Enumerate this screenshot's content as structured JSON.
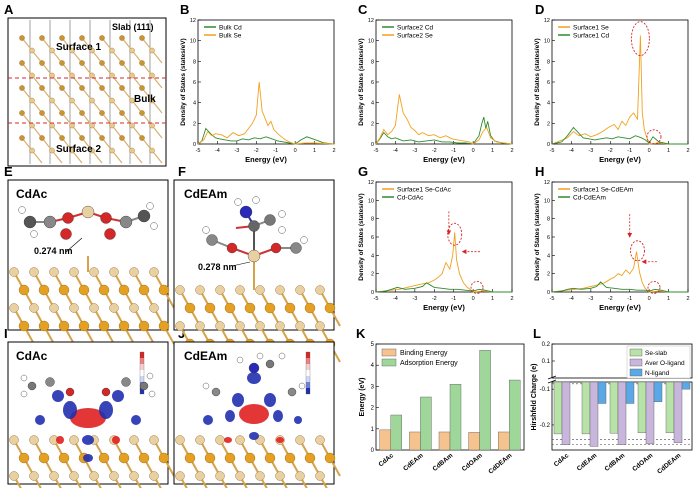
{
  "panel_letters": [
    "A",
    "B",
    "C",
    "D",
    "E",
    "F",
    "G",
    "H",
    "I",
    "J",
    "K",
    "L"
  ],
  "panel_a": {
    "slab_label": "Slab (111)",
    "surface1": "Surface 1",
    "surface2": "Surface 2",
    "bulk": "Bulk"
  },
  "panel_e": {
    "title": "CdAc",
    "distance": "0.274 nm"
  },
  "panel_f": {
    "title": "CdEAm",
    "distance": "0.278 nm"
  },
  "panel_i": {
    "title": "CdAc"
  },
  "panel_j": {
    "title": "CdEAm"
  },
  "colors": {
    "orange": "#f2a11f",
    "green": "#2e8b2e",
    "bar_orange": "#f6c28d",
    "bar_green": "#9fd79a",
    "bar_grey": "#b7e3a8",
    "bar_purple": "#c9b6dc",
    "bar_blue": "#5aa9e6",
    "red_dash": "#d62728"
  },
  "chart_data": [
    {
      "id": "B",
      "type": "line",
      "xlabel": "Energy (eV)",
      "ylabel": "Density of States (states/eV)",
      "xlim": [
        -5,
        2
      ],
      "ylim": [
        0,
        12
      ],
      "xticks": [
        -5,
        -4,
        -3,
        -2,
        -1,
        0,
        1,
        2
      ],
      "yticks": [
        0,
        2,
        4,
        6,
        8,
        10,
        12
      ],
      "series": [
        {
          "name": "Bulk Cd",
          "color": "#2e8b2e",
          "x": [
            -5,
            -4.8,
            -4.6,
            -4.45,
            -4.3,
            -4.1,
            -3.9,
            -3.6,
            -3.3,
            -3.0,
            -2.7,
            -2.4,
            -2.1,
            -1.8,
            -1.5,
            -1.2,
            -0.9,
            -0.6,
            -0.3,
            0,
            0.3,
            0.6,
            0.9,
            1.2,
            1.5,
            2
          ],
          "y": [
            0,
            0.3,
            1.5,
            1.2,
            0.9,
            0.6,
            0.5,
            0.4,
            0.3,
            0.3,
            0.5,
            0.4,
            0.6,
            0.5,
            0.7,
            0.5,
            0.3,
            0.2,
            0.1,
            0,
            0.4,
            0.7,
            0.5,
            0.3,
            0.1,
            0
          ]
        },
        {
          "name": "Bulk Se",
          "color": "#f2a11f",
          "x": [
            -5,
            -4.7,
            -4.5,
            -4.3,
            -4.1,
            -3.8,
            -3.5,
            -3.2,
            -2.9,
            -2.6,
            -2.4,
            -2.2,
            -2.0,
            -1.85,
            -1.7,
            -1.55,
            -1.4,
            -1.25,
            -1.1,
            -0.9,
            -0.7,
            -0.5,
            -0.3,
            0,
            0.5,
            1,
            2
          ],
          "y": [
            0,
            0.4,
            1.2,
            0.8,
            1.0,
            0.9,
            0.6,
            1.1,
            0.8,
            1.0,
            1.5,
            2.0,
            2.8,
            6.0,
            3.2,
            2.5,
            1.8,
            2.2,
            1.4,
            1.0,
            0.7,
            0.4,
            0.2,
            0,
            0.1,
            0.1,
            0
          ]
        }
      ]
    },
    {
      "id": "C",
      "type": "line",
      "xlabel": "Energy (eV)",
      "ylabel": "Density of States (states/eV)",
      "xlim": [
        -5,
        2
      ],
      "ylim": [
        0,
        12
      ],
      "xticks": [
        -5,
        -4,
        -3,
        -2,
        -1,
        0,
        1,
        2
      ],
      "yticks": [
        0,
        2,
        4,
        6,
        8,
        10,
        12
      ],
      "series": [
        {
          "name": "Surface2 Cd",
          "color": "#2e8b2e",
          "x": [
            -5,
            -4.8,
            -4.6,
            -4.4,
            -4.2,
            -4.0,
            -3.6,
            -3.2,
            -2.8,
            -2.4,
            -2.0,
            -1.6,
            -1.2,
            -0.8,
            -0.4,
            0,
            0.3,
            0.45,
            0.55,
            0.65,
            0.75,
            0.9,
            1.1,
            1.5,
            2
          ],
          "y": [
            0,
            0.5,
            1.1,
            0.7,
            0.5,
            0.6,
            0.3,
            0.4,
            0.2,
            0.3,
            0.4,
            0.2,
            0.2,
            0.1,
            0.1,
            0,
            0.8,
            2.0,
            2.6,
            1.5,
            2.2,
            0.8,
            0.3,
            0.1,
            0
          ]
        },
        {
          "name": "Surface2 Se",
          "color": "#f2a11f",
          "x": [
            -5,
            -4.8,
            -4.6,
            -4.4,
            -4.2,
            -4.0,
            -3.8,
            -3.6,
            -3.4,
            -3.2,
            -3.0,
            -2.8,
            -2.6,
            -2.3,
            -2.0,
            -1.7,
            -1.4,
            -1.1,
            -0.8,
            -0.5,
            -0.2,
            0,
            0.3,
            0.5,
            0.7,
            0.9,
            1.2,
            2
          ],
          "y": [
            0,
            0.6,
            1.4,
            0.9,
            1.2,
            1.8,
            4.8,
            3.0,
            2.4,
            1.6,
            1.3,
            0.9,
            1.1,
            0.8,
            0.9,
            0.6,
            0.8,
            0.5,
            0.4,
            0.3,
            0.2,
            0,
            0.4,
            1.2,
            1.6,
            0.6,
            0.2,
            0
          ]
        }
      ]
    },
    {
      "id": "D",
      "type": "line",
      "xlabel": "Energy (eV)",
      "ylabel": "Density of States (states/eV)",
      "xlim": [
        -5,
        2
      ],
      "ylim": [
        0,
        12
      ],
      "xticks": [
        -5,
        -4,
        -3,
        -2,
        -1,
        0,
        1,
        2
      ],
      "yticks": [
        0,
        2,
        4,
        6,
        8,
        10,
        12
      ],
      "series": [
        {
          "name": "Surface1 Se",
          "color": "#f2a11f",
          "x": [
            -5,
            -4.6,
            -4.2,
            -3.9,
            -3.6,
            -3.3,
            -3.0,
            -2.7,
            -2.4,
            -2.1,
            -1.8,
            -1.6,
            -1.4,
            -1.2,
            -1.0,
            -0.8,
            -0.6,
            -0.45,
            -0.35,
            -0.25,
            -0.1,
            0,
            0.5,
            1,
            2
          ],
          "y": [
            0,
            0.3,
            0.6,
            1.2,
            0.8,
            1.0,
            0.7,
            0.9,
            1.2,
            1.6,
            1.9,
            1.4,
            2.2,
            1.8,
            2.6,
            3.0,
            2.4,
            10.5,
            3.0,
            1.4,
            0.5,
            0,
            0.1,
            0,
            0
          ]
        },
        {
          "name": "Surface1 Cd",
          "color": "#2e8b2e",
          "x": [
            -5,
            -4.5,
            -4.2,
            -3.9,
            -3.7,
            -3.4,
            -3.1,
            -2.8,
            -2.5,
            -2.2,
            -1.9,
            -1.6,
            -1.3,
            -1.0,
            -0.7,
            -0.4,
            -0.2,
            0,
            0.2,
            0.5,
            1,
            2
          ],
          "y": [
            0,
            0.2,
            0.8,
            1.6,
            1.2,
            0.6,
            0.5,
            0.4,
            0.5,
            0.6,
            0.5,
            0.7,
            0.6,
            0.5,
            0.8,
            0.6,
            0.4,
            0.1,
            0.7,
            0.2,
            0,
            0
          ]
        }
      ]
    },
    {
      "id": "G",
      "type": "line",
      "xlabel": "Energy (eV)",
      "ylabel": "Density of States (states/eV)",
      "xlim": [
        -5,
        2
      ],
      "ylim": [
        0,
        12
      ],
      "xticks": [
        -5,
        -4,
        -3,
        -2,
        -1,
        0,
        1,
        2
      ],
      "yticks": [
        0,
        2,
        4,
        6,
        8,
        10,
        12
      ],
      "series": [
        {
          "name": "Surface1 Se-CdAc",
          "color": "#f2a11f",
          "x": [
            -5,
            -4.6,
            -4.2,
            -3.8,
            -3.4,
            -3.0,
            -2.6,
            -2.3,
            -2.0,
            -1.8,
            -1.6,
            -1.4,
            -1.2,
            -1.05,
            -0.95,
            -0.85,
            -0.7,
            -0.5,
            -0.3,
            -0.1,
            0,
            0.5,
            1,
            2
          ],
          "y": [
            0,
            0.1,
            0.2,
            0.3,
            0.5,
            0.7,
            0.9,
            1.0,
            1.3,
            1.6,
            2.0,
            3.2,
            2.5,
            4.0,
            6.5,
            3.5,
            2.0,
            1.0,
            0.5,
            0.2,
            0,
            0.1,
            0,
            0
          ]
        },
        {
          "name": "Cd-CdAc",
          "color": "#2e8b2e",
          "x": [
            -5,
            -4.5,
            -4.2,
            -3.9,
            -3.5,
            -3.0,
            -2.6,
            -2.4,
            -2.0,
            -1.6,
            -1.2,
            -0.8,
            -0.4,
            0,
            0.3,
            0.6,
            1,
            2
          ],
          "y": [
            0,
            0.1,
            0.3,
            0.5,
            0.3,
            0.4,
            0.6,
            1.0,
            0.5,
            0.4,
            0.3,
            0.3,
            0.2,
            0.1,
            0.3,
            0.2,
            0,
            0
          ]
        }
      ]
    },
    {
      "id": "H",
      "type": "line",
      "xlabel": "Energy (eV)",
      "ylabel": "Density of States (states/eV)",
      "xlim": [
        -5,
        2
      ],
      "ylim": [
        0,
        12
      ],
      "xticks": [
        -5,
        -4,
        -3,
        -2,
        -1,
        0,
        1,
        2
      ],
      "yticks": [
        0,
        2,
        4,
        6,
        8,
        10,
        12
      ],
      "series": [
        {
          "name": "Surface1 Se-CdEAm",
          "color": "#f2a11f",
          "x": [
            -5,
            -4.6,
            -4.2,
            -3.8,
            -3.4,
            -3.0,
            -2.6,
            -2.3,
            -2.0,
            -1.8,
            -1.6,
            -1.4,
            -1.2,
            -1.0,
            -0.8,
            -0.65,
            -0.5,
            -0.35,
            -0.2,
            0,
            0.5,
            1,
            2
          ],
          "y": [
            0,
            0.1,
            0.2,
            0.3,
            0.4,
            0.6,
            0.8,
            1.0,
            1.4,
            1.6,
            2.0,
            1.8,
            2.4,
            2.0,
            2.6,
            4.4,
            2.2,
            1.0,
            0.4,
            0,
            0.1,
            0,
            0
          ]
        },
        {
          "name": "Cd-CdEAm",
          "color": "#2e8b2e",
          "x": [
            -5,
            -4.5,
            -4.2,
            -3.9,
            -3.5,
            -3.0,
            -2.7,
            -2.5,
            -2.2,
            -1.8,
            -1.4,
            -1.0,
            -0.6,
            -0.2,
            0,
            0.3,
            0.6,
            1,
            2
          ],
          "y": [
            0,
            0.1,
            0.3,
            0.4,
            0.3,
            0.4,
            0.6,
            1.1,
            0.5,
            0.4,
            0.3,
            0.3,
            0.2,
            0.2,
            0.1,
            0.3,
            0.2,
            0,
            0
          ]
        }
      ]
    },
    {
      "id": "K",
      "type": "bar",
      "xlabel": "",
      "ylabel": "Energy (eV)",
      "ylim": [
        0,
        5
      ],
      "yticks": [
        0,
        1,
        2,
        3,
        4,
        5
      ],
      "categories": [
        "CdAc",
        "CdEAm",
        "CdBAm",
        "CdOAm",
        "CdDEAm"
      ],
      "series": [
        {
          "name": "Binding Energy",
          "color": "#f6c28d",
          "values": [
            0.95,
            0.85,
            0.85,
            0.83,
            0.85
          ]
        },
        {
          "name": "Adsorption Energy",
          "color": "#9fd79a",
          "values": [
            1.65,
            2.5,
            3.1,
            4.7,
            3.3
          ]
        }
      ]
    },
    {
      "id": "L",
      "type": "bar",
      "xlabel": "",
      "ylabel": "Hirshfeld Charge (e)",
      "ylim": [
        -0.27,
        0.2
      ],
      "yticks": [
        0.2,
        0.1,
        -0.1,
        -0.2
      ],
      "categories": [
        "CdAc",
        "CdEAm",
        "CdBAm",
        "CdOAm",
        "CdDEAm"
      ],
      "series": [
        {
          "name": "Se-slab",
          "color": "#b7e3a8",
          "values": [
            -0.225,
            -0.225,
            -0.223,
            -0.222,
            -0.222
          ]
        },
        {
          "name": "Aver O-ligand",
          "color": "#c9b6dc",
          "values": [
            -0.255,
            -0.26,
            -0.255,
            -0.253,
            -0.25
          ]
        },
        {
          "name": "N-ligand",
          "color": "#5aa9e6",
          "values": [
            null,
            -0.14,
            -0.14,
            -0.135,
            -0.1
          ]
        }
      ]
    }
  ]
}
